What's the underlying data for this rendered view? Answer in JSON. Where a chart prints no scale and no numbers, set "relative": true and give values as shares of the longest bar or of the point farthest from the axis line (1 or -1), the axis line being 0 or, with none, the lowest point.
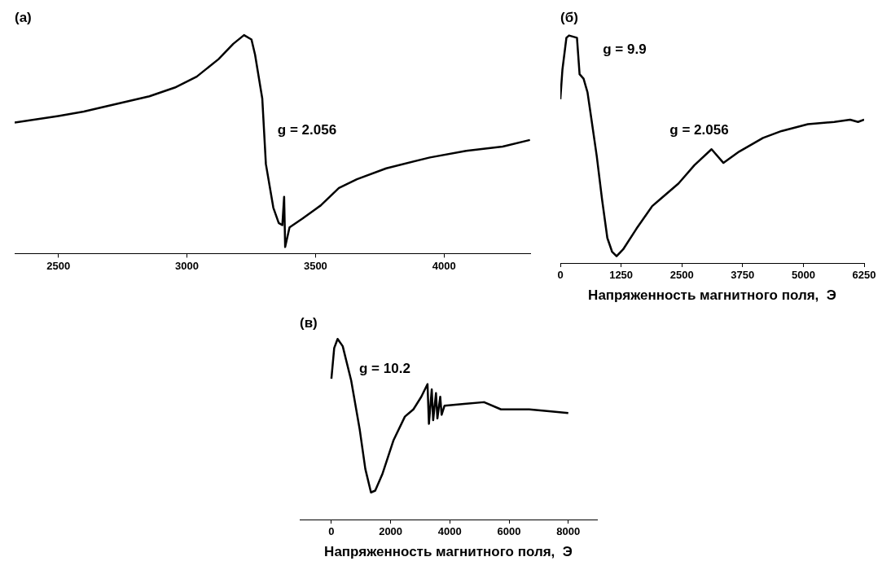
{
  "chart_data": [
    {
      "type": "line",
      "title": "(a)",
      "relative": true,
      "xlim": [
        2330,
        4335
      ],
      "xticks": [
        2500,
        3000,
        3500,
        4000
      ],
      "annotations": [
        "g = 2.056"
      ],
      "series": [
        {
          "color": "#000000",
          "x": [
            2330,
            2500,
            2599,
            2670,
            2854,
            2953,
            3038,
            3123,
            3180,
            3222,
            3251,
            3265,
            3293,
            3307,
            3336,
            3357,
            3371,
            3378,
            3382,
            3399,
            3449,
            3520,
            3591,
            3661,
            3775,
            3945,
            4086,
            4228,
            4334
          ],
          "values": [
            0.6,
            0.63,
            0.65,
            0.67,
            0.72,
            0.76,
            0.81,
            0.89,
            0.96,
            1,
            0.98,
            0.91,
            0.71,
            0.41,
            0.21,
            0.14,
            0.13,
            0.26,
            0.03,
            0.12,
            0.16,
            0.22,
            0.3,
            0.34,
            0.39,
            0.44,
            0.47,
            0.49,
            0.52
          ]
        }
      ]
    },
    {
      "type": "line",
      "title": "(б)",
      "xlabel": "Напряженность магнитного поля,  Э",
      "relative": true,
      "xlim": [
        0,
        6250
      ],
      "xticks": [
        0,
        1250,
        2500,
        3750,
        5000,
        6250
      ],
      "annotations": [
        "g = 9.9",
        "g = 2.056"
      ],
      "series": [
        {
          "color": "#000000",
          "x": [
            0,
            43,
            125,
            179,
            342,
            396,
            478,
            559,
            641,
            749,
            858,
            967,
            1064,
            1157,
            1292,
            1564,
            1890,
            2053,
            2433,
            2758,
            3111,
            3356,
            3682,
            4170,
            4550,
            5093,
            5636,
            5962,
            6125,
            6250
          ],
          "values": [
            0.72,
            0.85,
            0.99,
            1,
            0.99,
            0.83,
            0.81,
            0.75,
            0.63,
            0.47,
            0.28,
            0.11,
            0.05,
            0.03,
            0.06,
            0.15,
            0.25,
            0.28,
            0.35,
            0.43,
            0.5,
            0.44,
            0.49,
            0.55,
            0.58,
            0.61,
            0.62,
            0.63,
            0.62,
            0.63
          ]
        }
      ]
    },
    {
      "type": "line",
      "title": "(в)",
      "xlabel": "Напряженность магнитного поля,  Э",
      "relative": true,
      "xlim": [
        -1070,
        8970
      ],
      "xticks": [
        0,
        2000,
        4000,
        6000,
        8000
      ],
      "annotations": [
        "g = 10.2"
      ],
      "series": [
        {
          "color": "#000000",
          "x": [
            0,
            95,
            210,
            382,
            668,
            955,
            1146,
            1337,
            1480,
            1718,
            2100,
            2482,
            2769,
            3036,
            3246,
            3294,
            3389,
            3437,
            3532,
            3580,
            3676,
            3723,
            3819,
            4487,
            5155,
            5728,
            6683,
            7351,
            8000
          ],
          "values": [
            0.78,
            0.95,
            1,
            0.96,
            0.77,
            0.5,
            0.28,
            0.15,
            0.16,
            0.25,
            0.44,
            0.57,
            0.61,
            0.68,
            0.75,
            0.53,
            0.72,
            0.55,
            0.7,
            0.56,
            0.68,
            0.58,
            0.63,
            0.64,
            0.65,
            0.61,
            0.61,
            0.6,
            0.59
          ]
        }
      ]
    }
  ]
}
